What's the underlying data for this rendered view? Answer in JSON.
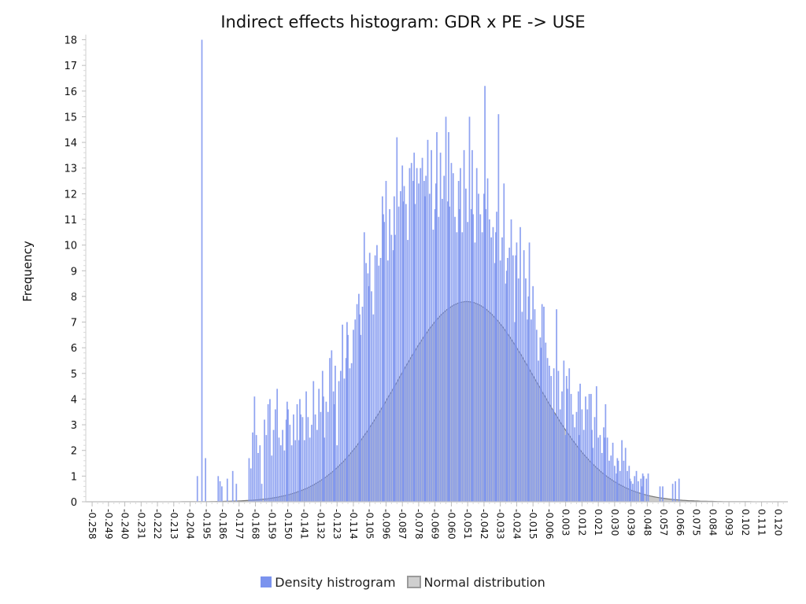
{
  "chart_data": {
    "type": "bar",
    "title": "Indirect effects histogram: GDR x PE -> USE",
    "xlabel": "",
    "ylabel": "Frequency",
    "xlim": [
      -0.2615,
      0.1255
    ],
    "ylim": [
      0,
      18.2
    ],
    "y_ticks": [
      0,
      1,
      2,
      3,
      4,
      5,
      6,
      7,
      8,
      9,
      10,
      11,
      12,
      13,
      14,
      15,
      16,
      17,
      18
    ],
    "x_tick_labels": [
      "-0.258",
      "-0.249",
      "-0.240",
      "-0.231",
      "-0.222",
      "-0.213",
      "-0.204",
      "-0.195",
      "-0.186",
      "-0.177",
      "-0.168",
      "-0.159",
      "-0.150",
      "-0.141",
      "-0.132",
      "-0.123",
      "-0.114",
      "-0.105",
      "-0.096",
      "-0.087",
      "-0.078",
      "-0.069",
      "-0.060",
      "-0.051",
      "-0.042",
      "-0.033",
      "-0.024",
      "-0.015",
      "-0.006",
      "0.003",
      "0.012",
      "0.021",
      "0.030",
      "0.039",
      "0.048",
      "0.057",
      "0.066",
      "0.075",
      "0.084",
      "0.093",
      "0.102",
      "0.111",
      "0.120"
    ],
    "grid": false,
    "legend_position": "bottom-center",
    "bin_width": 0.00075,
    "colors": {
      "histogram": "#7b93ee",
      "normal_fill": "#8a8a8a",
      "normal_stroke": "#777777"
    },
    "legend": [
      {
        "name": "Density histrogram",
        "swatch": "histogram"
      },
      {
        "name": "Normal distribution",
        "swatch": "normal"
      }
    ],
    "series": [
      {
        "name": "Density histrogram",
        "kind": "bars",
        "points": [
          [
            -0.2,
            1
          ],
          [
            -0.1975,
            18
          ],
          [
            -0.1955,
            1.7
          ],
          [
            -0.1885,
            1
          ],
          [
            -0.1875,
            0.8
          ],
          [
            -0.1865,
            0.6
          ],
          [
            -0.1835,
            0.9
          ],
          [
            -0.1805,
            1.2
          ],
          [
            -0.1785,
            0.7
          ],
          [
            -0.1715,
            1.7
          ],
          [
            -0.1705,
            1.3
          ],
          [
            -0.1695,
            2.7
          ],
          [
            -0.1685,
            4.1
          ],
          [
            -0.1675,
            2.6
          ],
          [
            -0.1665,
            1.9
          ],
          [
            -0.1655,
            2.2
          ],
          [
            -0.1645,
            0.7
          ],
          [
            -0.163,
            3.2
          ],
          [
            -0.162,
            2.6
          ],
          [
            -0.161,
            3.8
          ],
          [
            -0.16,
            4.0
          ],
          [
            -0.159,
            1.8
          ],
          [
            -0.158,
            2.8
          ],
          [
            -0.157,
            3.6
          ],
          [
            -0.156,
            4.4
          ],
          [
            -0.155,
            2.5
          ],
          [
            -0.154,
            2.2
          ],
          [
            -0.153,
            2.8
          ],
          [
            -0.152,
            2.0
          ],
          [
            -0.151,
            3.2
          ],
          [
            -0.1505,
            3.9
          ],
          [
            -0.15,
            3.6
          ],
          [
            -0.149,
            3.0
          ],
          [
            -0.148,
            2.2
          ],
          [
            -0.147,
            3.4
          ],
          [
            -0.146,
            2.4
          ],
          [
            -0.145,
            3.8
          ],
          [
            -0.144,
            2.4
          ],
          [
            -0.1435,
            4.0
          ],
          [
            -0.143,
            3.4
          ],
          [
            -0.142,
            3.3
          ],
          [
            -0.141,
            2.4
          ],
          [
            -0.14,
            4.3
          ],
          [
            -0.139,
            3.3
          ],
          [
            -0.138,
            2.5
          ],
          [
            -0.137,
            3.0
          ],
          [
            -0.136,
            4.7
          ],
          [
            -0.135,
            3.4
          ],
          [
            -0.134,
            2.8
          ],
          [
            -0.133,
            4.4
          ],
          [
            -0.132,
            3.5
          ],
          [
            -0.131,
            5.1
          ],
          [
            -0.1305,
            4.1
          ],
          [
            -0.13,
            2.5
          ],
          [
            -0.129,
            3.9
          ],
          [
            -0.128,
            3.5
          ],
          [
            -0.127,
            5.6
          ],
          [
            -0.126,
            5.9
          ],
          [
            -0.125,
            4.3
          ],
          [
            -0.1245,
            3.8
          ],
          [
            -0.124,
            5.3
          ],
          [
            -0.123,
            2.2
          ],
          [
            -0.122,
            4.7
          ],
          [
            -0.121,
            5.1
          ],
          [
            -0.12,
            6.9
          ],
          [
            -0.119,
            4.8
          ],
          [
            -0.118,
            5.6
          ],
          [
            -0.1175,
            7.0
          ],
          [
            -0.117,
            6.5
          ],
          [
            -0.116,
            5.2
          ],
          [
            -0.115,
            5.4
          ],
          [
            -0.114,
            6.7
          ],
          [
            -0.113,
            7.1
          ],
          [
            -0.112,
            7.7
          ],
          [
            -0.111,
            8.1
          ],
          [
            -0.1105,
            7.3
          ],
          [
            -0.11,
            6.5
          ],
          [
            -0.109,
            7.6
          ],
          [
            -0.108,
            10.5
          ],
          [
            -0.107,
            9.3
          ],
          [
            -0.106,
            8.9
          ],
          [
            -0.1055,
            8.4
          ],
          [
            -0.105,
            9.7
          ],
          [
            -0.104,
            8.2
          ],
          [
            -0.103,
            7.3
          ],
          [
            -0.102,
            9.6
          ],
          [
            -0.101,
            10.0
          ],
          [
            -0.1,
            9.2
          ],
          [
            -0.099,
            9.5
          ],
          [
            -0.098,
            11.9
          ],
          [
            -0.0975,
            11.2
          ],
          [
            -0.097,
            10.9
          ],
          [
            -0.096,
            12.5
          ],
          [
            -0.095,
            9.4
          ],
          [
            -0.094,
            11.4
          ],
          [
            -0.093,
            10.4
          ],
          [
            -0.092,
            9.8
          ],
          [
            -0.0915,
            11.9
          ],
          [
            -0.091,
            10.4
          ],
          [
            -0.09,
            14.2
          ],
          [
            -0.089,
            11.5
          ],
          [
            -0.088,
            12.1
          ],
          [
            -0.087,
            13.1
          ],
          [
            -0.0865,
            11.7
          ],
          [
            -0.086,
            12.3
          ],
          [
            -0.085,
            11.6
          ],
          [
            -0.084,
            10.2
          ],
          [
            -0.083,
            13.0
          ],
          [
            -0.082,
            13.2
          ],
          [
            -0.081,
            12.5
          ],
          [
            -0.0805,
            13.6
          ],
          [
            -0.08,
            11.6
          ],
          [
            -0.079,
            13.0
          ],
          [
            -0.078,
            12.4
          ],
          [
            -0.077,
            13.0
          ],
          [
            -0.076,
            13.4
          ],
          [
            -0.075,
            12.5
          ],
          [
            -0.0745,
            11.9
          ],
          [
            -0.074,
            12.7
          ],
          [
            -0.073,
            14.1
          ],
          [
            -0.072,
            12.0
          ],
          [
            -0.071,
            13.7
          ],
          [
            -0.07,
            10.6
          ],
          [
            -0.069,
            11.4
          ],
          [
            -0.0685,
            12.4
          ],
          [
            -0.068,
            14.4
          ],
          [
            -0.067,
            11.1
          ],
          [
            -0.066,
            13.6
          ],
          [
            -0.065,
            11.8
          ],
          [
            -0.064,
            12.7
          ],
          [
            -0.063,
            15.0
          ],
          [
            -0.062,
            11.7
          ],
          [
            -0.0615,
            14.4
          ],
          [
            -0.061,
            11.5
          ],
          [
            -0.06,
            13.2
          ],
          [
            -0.059,
            12.8
          ],
          [
            -0.058,
            11.1
          ],
          [
            -0.057,
            10.5
          ],
          [
            -0.056,
            12.5
          ],
          [
            -0.0555,
            11.4
          ],
          [
            -0.055,
            13.0
          ],
          [
            -0.054,
            10.5
          ],
          [
            -0.053,
            13.7
          ],
          [
            -0.052,
            12.2
          ],
          [
            -0.051,
            10.9
          ],
          [
            -0.05,
            15.0
          ],
          [
            -0.049,
            11.4
          ],
          [
            -0.0485,
            13.7
          ],
          [
            -0.048,
            11.2
          ],
          [
            -0.047,
            10.1
          ],
          [
            -0.046,
            13.0
          ],
          [
            -0.045,
            12.0
          ],
          [
            -0.044,
            11.2
          ],
          [
            -0.043,
            10.5
          ],
          [
            -0.042,
            12.0
          ],
          [
            -0.0415,
            16.2
          ],
          [
            -0.041,
            11.4
          ],
          [
            -0.04,
            12.6
          ],
          [
            -0.039,
            11.0
          ],
          [
            -0.038,
            10.3
          ],
          [
            -0.037,
            10.7
          ],
          [
            -0.036,
            9.3
          ],
          [
            -0.0355,
            10.5
          ],
          [
            -0.035,
            11.3
          ],
          [
            -0.034,
            15.1
          ],
          [
            -0.033,
            9.4
          ],
          [
            -0.032,
            10.3
          ],
          [
            -0.031,
            12.4
          ],
          [
            -0.03,
            8.5
          ],
          [
            -0.0295,
            9.0
          ],
          [
            -0.029,
            9.5
          ],
          [
            -0.028,
            9.9
          ],
          [
            -0.027,
            11.0
          ],
          [
            -0.026,
            9.6
          ],
          [
            -0.025,
            7.0
          ],
          [
            -0.0245,
            9.6
          ],
          [
            -0.024,
            10.1
          ],
          [
            -0.023,
            8.7
          ],
          [
            -0.022,
            10.7
          ],
          [
            -0.021,
            7.4
          ],
          [
            -0.02,
            9.8
          ],
          [
            -0.019,
            8.7
          ],
          [
            -0.018,
            7.1
          ],
          [
            -0.0175,
            8.0
          ],
          [
            -0.017,
            10.1
          ],
          [
            -0.016,
            7.1
          ],
          [
            -0.015,
            8.4
          ],
          [
            -0.014,
            7.5
          ],
          [
            -0.013,
            6.7
          ],
          [
            -0.012,
            5.5
          ],
          [
            -0.011,
            6.4
          ],
          [
            -0.0105,
            6.0
          ],
          [
            -0.01,
            7.7
          ],
          [
            -0.009,
            7.6
          ],
          [
            -0.008,
            6.2
          ],
          [
            -0.007,
            5.6
          ],
          [
            -0.006,
            5.3
          ],
          [
            -0.005,
            4.9
          ],
          [
            -0.004,
            3.6
          ],
          [
            -0.0035,
            5.2
          ],
          [
            -0.003,
            3.4
          ],
          [
            -0.002,
            7.5
          ],
          [
            -0.001,
            5.1
          ],
          [
            0,
            3.6
          ],
          [
            0.001,
            4.3
          ],
          [
            0.002,
            5.5
          ],
          [
            0.003,
            2.6
          ],
          [
            0.0035,
            4.9
          ],
          [
            0.004,
            4.4
          ],
          [
            0.005,
            5.2
          ],
          [
            0.006,
            4.2
          ],
          [
            0.007,
            3.4
          ],
          [
            0.008,
            2.9
          ],
          [
            0.009,
            3.5
          ],
          [
            0.01,
            4.3
          ],
          [
            0.0105,
            2.6
          ],
          [
            0.011,
            4.6
          ],
          [
            0.012,
            3.6
          ],
          [
            0.013,
            2.8
          ],
          [
            0.014,
            4.1
          ],
          [
            0.015,
            3.6
          ],
          [
            0.016,
            4.2
          ],
          [
            0.017,
            4.2
          ],
          [
            0.0175,
            2.8
          ],
          [
            0.018,
            2.1
          ],
          [
            0.019,
            3.3
          ],
          [
            0.02,
            4.5
          ],
          [
            0.021,
            2.5
          ],
          [
            0.022,
            2.6
          ],
          [
            0.023,
            1.9
          ],
          [
            0.024,
            2.9
          ],
          [
            0.0245,
            2.5
          ],
          [
            0.025,
            3.8
          ],
          [
            0.026,
            2.5
          ],
          [
            0.027,
            1.6
          ],
          [
            0.028,
            1.8
          ],
          [
            0.029,
            2.3
          ],
          [
            0.03,
            1.4
          ],
          [
            0.031,
            1.1
          ],
          [
            0.0315,
            1.7
          ],
          [
            0.032,
            1.6
          ],
          [
            0.033,
            1.2
          ],
          [
            0.034,
            2.4
          ],
          [
            0.035,
            1.6
          ],
          [
            0.036,
            2.1
          ],
          [
            0.037,
            1.2
          ],
          [
            0.038,
            1.4
          ],
          [
            0.0385,
            0.9
          ],
          [
            0.039,
            0.8
          ],
          [
            0.04,
            0.7
          ],
          [
            0.041,
            1.0
          ],
          [
            0.042,
            1.2
          ],
          [
            0.043,
            0.8
          ],
          [
            0.0445,
            0.9
          ],
          [
            0.045,
            0.6
          ],
          [
            0.0455,
            1.1
          ],
          [
            0.046,
            1.0
          ],
          [
            0.0475,
            0.9
          ],
          [
            0.0485,
            1.1
          ],
          [
            0.055,
            0.6
          ],
          [
            0.0565,
            0.6
          ],
          [
            0.062,
            0.7
          ],
          [
            0.0635,
            0.8
          ],
          [
            0.0655,
            0.9
          ]
        ]
      },
      {
        "name": "Normal distribution",
        "kind": "area",
        "mean": -0.0515,
        "sd": 0.038,
        "peak": 7.8
      }
    ]
  }
}
